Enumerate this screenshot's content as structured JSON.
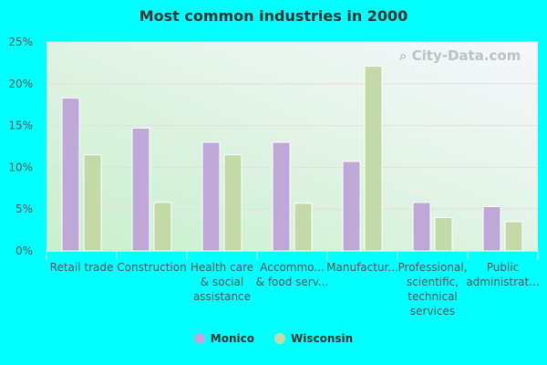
{
  "chart_data": {
    "type": "bar",
    "title": "Most common industries in 2000",
    "categories": [
      [
        "Retail trade"
      ],
      [
        "Construction"
      ],
      [
        "Health care",
        "& social",
        "assistance"
      ],
      [
        "Accommo...",
        "& food serv..."
      ],
      [
        "Manufactur..."
      ],
      [
        "Professional,",
        "scientific,",
        "technical",
        "services"
      ],
      [
        "Public",
        "administrat..."
      ]
    ],
    "series": [
      {
        "name": "Monico",
        "color": "#bea8d8",
        "values": [
          18.3,
          14.7,
          13.0,
          13.0,
          10.7,
          5.8,
          5.3
        ]
      },
      {
        "name": "Wisconsin",
        "color": "#c4d9a8",
        "values": [
          11.5,
          5.8,
          11.5,
          5.7,
          22.1,
          4.0,
          3.5
        ]
      }
    ],
    "ylim": [
      0,
      25
    ],
    "yticks": [
      "0%",
      "5%",
      "10%",
      "15%",
      "20%",
      "25%"
    ],
    "grid": true,
    "legend": "bottom",
    "xlabel": "",
    "ylabel": ""
  },
  "watermark": "City-Data.com"
}
